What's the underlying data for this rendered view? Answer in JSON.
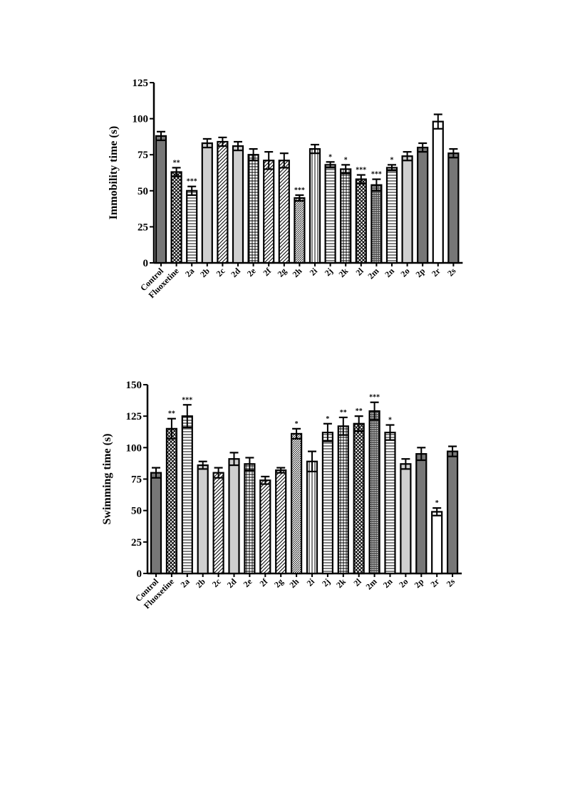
{
  "chart_data": [
    {
      "type": "bar",
      "ylabel": "Immobility time (s)",
      "ylim": [
        0,
        125
      ],
      "yticks": [
        0,
        25,
        50,
        75,
        100,
        125
      ],
      "categories": [
        "Control",
        "Fluoxetine",
        "2a",
        "2b",
        "2c",
        "2d",
        "2e",
        "2f",
        "2g",
        "2h",
        "2i",
        "2j",
        "2k",
        "2l",
        "2m",
        "2n",
        "2o",
        "2p",
        "2r",
        "2s"
      ],
      "values": [
        88,
        63,
        50,
        83,
        84,
        81,
        75,
        71,
        71,
        45,
        79,
        68,
        65,
        58,
        54,
        66,
        74,
        80,
        98,
        76
      ],
      "errors": [
        3,
        3,
        3,
        3,
        3,
        3,
        4,
        6,
        5,
        2,
        3,
        2,
        3,
        3,
        4,
        2,
        3,
        3,
        5,
        3
      ],
      "significance": [
        "",
        "**",
        "***",
        "",
        "",
        "",
        "",
        "",
        "",
        "***",
        "",
        "*",
        "*",
        "***",
        "***",
        "*",
        "",
        "",
        "",
        ""
      ],
      "patterns": [
        "dark",
        "crosshatch",
        "hlines",
        "light",
        "diag",
        "light",
        "grid",
        "diag",
        "diag",
        "fine",
        "vlines",
        "hlines",
        "grid",
        "crosshatch",
        "dots",
        "hlines",
        "light",
        "dark",
        "white",
        "dark"
      ]
    },
    {
      "type": "bar",
      "ylabel": "Swimming time (s)",
      "ylim": [
        0,
        150
      ],
      "yticks": [
        0,
        25,
        50,
        75,
        100,
        125,
        150
      ],
      "categories": [
        "Control",
        "Fluoxetine",
        "2a",
        "2b",
        "2c",
        "2d",
        "2e",
        "2f",
        "2g",
        "2h",
        "2i",
        "2j",
        "2k",
        "2l",
        "2m",
        "2n",
        "2o",
        "2p",
        "2r",
        "2s"
      ],
      "values": [
        80,
        115,
        125,
        86,
        80,
        91,
        87,
        74,
        82,
        111,
        89,
        112,
        117,
        119,
        129,
        112,
        87,
        95,
        49,
        97
      ],
      "errors": [
        4,
        8,
        9,
        3,
        4,
        5,
        5,
        3,
        2,
        4,
        8,
        7,
        7,
        6,
        7,
        6,
        4,
        5,
        3,
        4
      ],
      "significance": [
        "",
        "**",
        "***",
        "",
        "",
        "",
        "",
        "",
        "",
        "*",
        "",
        "*",
        "**",
        "**",
        "***",
        "*",
        "",
        "",
        "*",
        ""
      ],
      "patterns": [
        "dark",
        "crosshatch",
        "hlines",
        "light",
        "diag",
        "light",
        "grid",
        "diag",
        "diag",
        "fine",
        "vlines",
        "hlines",
        "grid",
        "crosshatch",
        "dots",
        "hlines",
        "light",
        "dark",
        "white",
        "dark"
      ]
    }
  ]
}
